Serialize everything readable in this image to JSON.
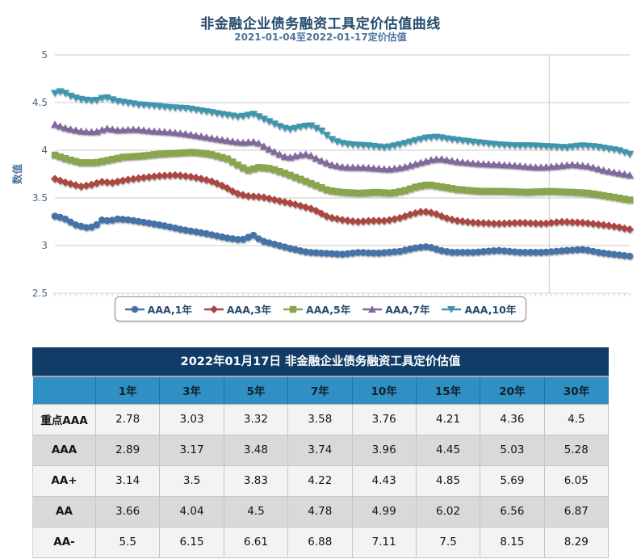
{
  "chart": {
    "title": "非金融企业债务融资工具定价估值曲线",
    "subtitle": "2021-01-04至2022-01-17定价估值",
    "y_axis_label": "数值"
  },
  "chart_data": {
    "type": "line",
    "title": "非金融企业债务融资工具定价估值曲线",
    "subtitle": "2021-01-04至2022-01-17定价估值",
    "xlabel": "",
    "ylabel": "数值",
    "x_range": [
      "2021-01-04",
      "2022-01-17"
    ],
    "ylim": [
      2.5,
      5
    ],
    "y_ticks": [
      5,
      4.5,
      4,
      3.5,
      3,
      2.5
    ],
    "grid": true,
    "legend_position": "bottom",
    "x_major_gridline_t": 0.86,
    "n_markers": 111,
    "series": [
      {
        "name": "AAA,1年",
        "color": "#4572A7",
        "marker": "circle",
        "points": [
          [
            0,
            3.31
          ],
          [
            0.015,
            3.29
          ],
          [
            0.035,
            3.22
          ],
          [
            0.055,
            3.19
          ],
          [
            0.07,
            3.2
          ],
          [
            0.08,
            3.27
          ],
          [
            0.095,
            3.26
          ],
          [
            0.11,
            3.28
          ],
          [
            0.13,
            3.27
          ],
          [
            0.16,
            3.24
          ],
          [
            0.19,
            3.21
          ],
          [
            0.22,
            3.17
          ],
          [
            0.26,
            3.13
          ],
          [
            0.3,
            3.08
          ],
          [
            0.325,
            3.06
          ],
          [
            0.345,
            3.11
          ],
          [
            0.36,
            3.05
          ],
          [
            0.385,
            3.01
          ],
          [
            0.41,
            2.97
          ],
          [
            0.44,
            2.93
          ],
          [
            0.47,
            2.92
          ],
          [
            0.5,
            2.91
          ],
          [
            0.53,
            2.93
          ],
          [
            0.56,
            2.92
          ],
          [
            0.6,
            2.94
          ],
          [
            0.63,
            2.98
          ],
          [
            0.65,
            2.99
          ],
          [
            0.67,
            2.95
          ],
          [
            0.69,
            2.93
          ],
          [
            0.73,
            2.93
          ],
          [
            0.77,
            2.95
          ],
          [
            0.81,
            2.93
          ],
          [
            0.85,
            2.93
          ],
          [
            0.89,
            2.95
          ],
          [
            0.92,
            2.96
          ],
          [
            0.945,
            2.93
          ],
          [
            0.97,
            2.91
          ],
          [
            1,
            2.89
          ]
        ]
      },
      {
        "name": "AAA,3年",
        "color": "#AA4643",
        "marker": "diamond",
        "points": [
          [
            0,
            3.7
          ],
          [
            0.02,
            3.66
          ],
          [
            0.045,
            3.62
          ],
          [
            0.065,
            3.64
          ],
          [
            0.08,
            3.67
          ],
          [
            0.1,
            3.66
          ],
          [
            0.125,
            3.69
          ],
          [
            0.15,
            3.71
          ],
          [
            0.18,
            3.73
          ],
          [
            0.21,
            3.74
          ],
          [
            0.24,
            3.72
          ],
          [
            0.27,
            3.68
          ],
          [
            0.295,
            3.62
          ],
          [
            0.315,
            3.55
          ],
          [
            0.335,
            3.52
          ],
          [
            0.36,
            3.51
          ],
          [
            0.39,
            3.47
          ],
          [
            0.42,
            3.43
          ],
          [
            0.45,
            3.38
          ],
          [
            0.475,
            3.3
          ],
          [
            0.5,
            3.27
          ],
          [
            0.525,
            3.25
          ],
          [
            0.55,
            3.26
          ],
          [
            0.575,
            3.26
          ],
          [
            0.6,
            3.29
          ],
          [
            0.62,
            3.33
          ],
          [
            0.64,
            3.36
          ],
          [
            0.66,
            3.34
          ],
          [
            0.68,
            3.29
          ],
          [
            0.7,
            3.26
          ],
          [
            0.73,
            3.24
          ],
          [
            0.77,
            3.23
          ],
          [
            0.81,
            3.24
          ],
          [
            0.85,
            3.23
          ],
          [
            0.88,
            3.25
          ],
          [
            0.92,
            3.24
          ],
          [
            0.95,
            3.22
          ],
          [
            0.975,
            3.2
          ],
          [
            1,
            3.17
          ]
        ]
      },
      {
        "name": "AAA,5年",
        "color": "#89A54E",
        "marker": "square",
        "points": [
          [
            0,
            3.95
          ],
          [
            0.02,
            3.91
          ],
          [
            0.045,
            3.87
          ],
          [
            0.07,
            3.87
          ],
          [
            0.095,
            3.9
          ],
          [
            0.12,
            3.93
          ],
          [
            0.15,
            3.94
          ],
          [
            0.18,
            3.96
          ],
          [
            0.21,
            3.97
          ],
          [
            0.24,
            3.98
          ],
          [
            0.27,
            3.96
          ],
          [
            0.3,
            3.91
          ],
          [
            0.32,
            3.84
          ],
          [
            0.335,
            3.79
          ],
          [
            0.355,
            3.82
          ],
          [
            0.375,
            3.81
          ],
          [
            0.4,
            3.76
          ],
          [
            0.43,
            3.69
          ],
          [
            0.455,
            3.63
          ],
          [
            0.475,
            3.58
          ],
          [
            0.5,
            3.56
          ],
          [
            0.53,
            3.55
          ],
          [
            0.56,
            3.56
          ],
          [
            0.585,
            3.55
          ],
          [
            0.61,
            3.58
          ],
          [
            0.63,
            3.62
          ],
          [
            0.65,
            3.64
          ],
          [
            0.67,
            3.62
          ],
          [
            0.7,
            3.59
          ],
          [
            0.74,
            3.57
          ],
          [
            0.78,
            3.57
          ],
          [
            0.82,
            3.56
          ],
          [
            0.86,
            3.57
          ],
          [
            0.9,
            3.56
          ],
          [
            0.93,
            3.55
          ],
          [
            0.96,
            3.52
          ],
          [
            1,
            3.48
          ]
        ]
      },
      {
        "name": "AAA,7年",
        "color": "#80699B",
        "marker": "triangle",
        "points": [
          [
            0,
            4.27
          ],
          [
            0.02,
            4.23
          ],
          [
            0.045,
            4.2
          ],
          [
            0.07,
            4.19
          ],
          [
            0.09,
            4.23
          ],
          [
            0.11,
            4.21
          ],
          [
            0.14,
            4.22
          ],
          [
            0.17,
            4.2
          ],
          [
            0.2,
            4.19
          ],
          [
            0.23,
            4.17
          ],
          [
            0.26,
            4.14
          ],
          [
            0.29,
            4.11
          ],
          [
            0.325,
            4.08
          ],
          [
            0.35,
            4.09
          ],
          [
            0.37,
            4.02
          ],
          [
            0.39,
            3.96
          ],
          [
            0.405,
            3.92
          ],
          [
            0.425,
            3.95
          ],
          [
            0.44,
            3.96
          ],
          [
            0.46,
            3.9
          ],
          [
            0.48,
            3.85
          ],
          [
            0.505,
            3.82
          ],
          [
            0.535,
            3.82
          ],
          [
            0.56,
            3.81
          ],
          [
            0.58,
            3.8
          ],
          [
            0.605,
            3.82
          ],
          [
            0.63,
            3.86
          ],
          [
            0.655,
            3.9
          ],
          [
            0.67,
            3.91
          ],
          [
            0.7,
            3.88
          ],
          [
            0.735,
            3.86
          ],
          [
            0.77,
            3.85
          ],
          [
            0.8,
            3.84
          ],
          [
            0.84,
            3.82
          ],
          [
            0.87,
            3.83
          ],
          [
            0.9,
            3.85
          ],
          [
            0.93,
            3.83
          ],
          [
            0.955,
            3.79
          ],
          [
            0.98,
            3.76
          ],
          [
            1,
            3.74
          ]
        ]
      },
      {
        "name": "AAA,10年",
        "color": "#3D96AE",
        "marker": "triangle-down",
        "points": [
          [
            0,
            4.6
          ],
          [
            0.012,
            4.62
          ],
          [
            0.03,
            4.56
          ],
          [
            0.05,
            4.53
          ],
          [
            0.07,
            4.52
          ],
          [
            0.088,
            4.56
          ],
          [
            0.105,
            4.52
          ],
          [
            0.125,
            4.5
          ],
          [
            0.145,
            4.48
          ],
          [
            0.17,
            4.47
          ],
          [
            0.2,
            4.45
          ],
          [
            0.23,
            4.44
          ],
          [
            0.26,
            4.41
          ],
          [
            0.29,
            4.38
          ],
          [
            0.32,
            4.35
          ],
          [
            0.345,
            4.38
          ],
          [
            0.37,
            4.31
          ],
          [
            0.395,
            4.24
          ],
          [
            0.41,
            4.22
          ],
          [
            0.43,
            4.25
          ],
          [
            0.445,
            4.26
          ],
          [
            0.465,
            4.2
          ],
          [
            0.48,
            4.12
          ],
          [
            0.495,
            4.08
          ],
          [
            0.515,
            4.06
          ],
          [
            0.545,
            4.05
          ],
          [
            0.575,
            4.03
          ],
          [
            0.6,
            4.06
          ],
          [
            0.625,
            4.1
          ],
          [
            0.645,
            4.13
          ],
          [
            0.665,
            4.14
          ],
          [
            0.685,
            4.12
          ],
          [
            0.71,
            4.1
          ],
          [
            0.74,
            4.08
          ],
          [
            0.77,
            4.06
          ],
          [
            0.8,
            4.05
          ],
          [
            0.83,
            4.05
          ],
          [
            0.86,
            4.04
          ],
          [
            0.89,
            4.03
          ],
          [
            0.915,
            4.05
          ],
          [
            0.94,
            4.04
          ],
          [
            0.96,
            4.02
          ],
          [
            0.98,
            4.0
          ],
          [
            1,
            3.96
          ]
        ]
      }
    ]
  },
  "table": {
    "title": "2022年01月17日 非金融企业债务融资工具定价估值",
    "columns": [
      "1年",
      "3年",
      "5年",
      "7年",
      "10年",
      "15年",
      "20年",
      "30年"
    ],
    "rows": [
      {
        "label": "重点AAA",
        "values": [
          2.78,
          3.03,
          3.32,
          3.58,
          3.76,
          4.21,
          4.36,
          4.5
        ]
      },
      {
        "label": "AAA",
        "values": [
          2.89,
          3.17,
          3.48,
          3.74,
          3.96,
          4.45,
          5.03,
          5.28
        ]
      },
      {
        "label": "AA+",
        "values": [
          3.14,
          3.5,
          3.83,
          4.22,
          4.43,
          4.85,
          5.69,
          6.05
        ]
      },
      {
        "label": "AA",
        "values": [
          3.66,
          4.04,
          4.5,
          4.78,
          4.99,
          6.02,
          6.56,
          6.87
        ]
      },
      {
        "label": "AA-",
        "values": [
          5.5,
          6.15,
          6.61,
          6.88,
          7.11,
          7.5,
          8.15,
          8.29
        ]
      }
    ]
  },
  "colors": {
    "chart_title": "#274B6D",
    "chart_subtitle": "#4D759E",
    "gridline": "#C8C8C8",
    "axis_line": "#C9D6E2",
    "table_title_bg": "#113C68",
    "table_header_bg": "#3090C3",
    "row_light_bg": "#F3F3F2",
    "row_dark_bg": "#D9D9D9"
  }
}
